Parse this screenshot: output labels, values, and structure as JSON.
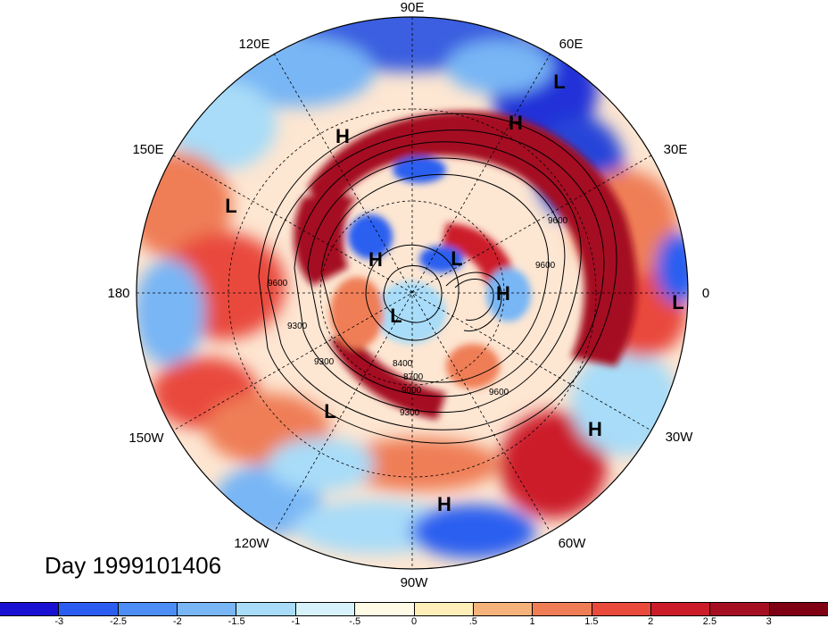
{
  "title": "Day 1999101406",
  "longitude_labels": [
    "90E",
    "60E",
    "30E",
    "0",
    "30W",
    "60W",
    "90W",
    "120W",
    "150W",
    "180",
    "150E",
    "120E"
  ],
  "pressure_system_markers": [
    "H",
    "H",
    "H",
    "H",
    "H",
    "H",
    "L",
    "L",
    "L",
    "L",
    "L",
    "L"
  ],
  "contour_labels": [
    "9300",
    "9300",
    "9600",
    "9600",
    "9600",
    "9600",
    "8400",
    "8700",
    "9000",
    "9300"
  ],
  "colorbar": {
    "tick_labels": [
      "-3",
      "-2.5",
      "-2",
      "-1.5",
      "-1",
      "-.5",
      "0",
      ".5",
      "1",
      "1.5",
      "2",
      "2.5",
      "3"
    ],
    "colors": [
      "#1a10d4",
      "#2b5ef0",
      "#4c8ef5",
      "#78b6f5",
      "#a8dcf8",
      "#d8f2fc",
      "#fffbe6",
      "#feeeb8",
      "#f5b27a",
      "#ef7e56",
      "#e94a3c",
      "#cc1c2a",
      "#a50f21",
      "#800014"
    ]
  }
}
